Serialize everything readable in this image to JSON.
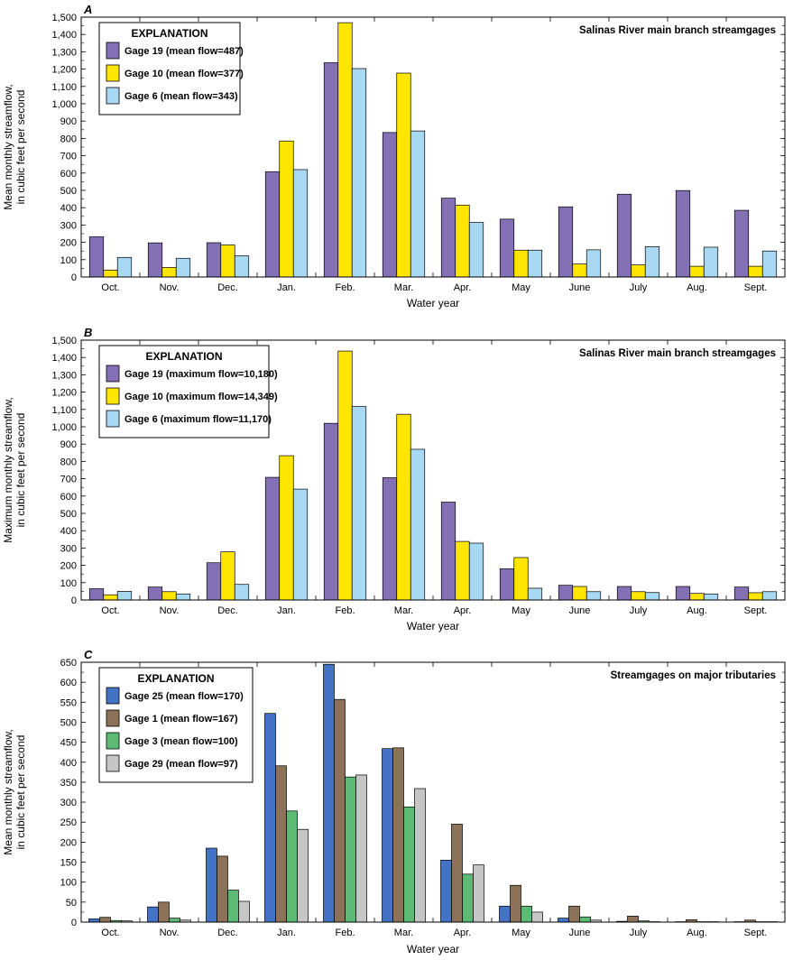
{
  "chart_data": [
    {
      "type": "bar",
      "panel_letter": "A",
      "title": "Salinas River main branch streamgages",
      "xlabel": "Water year",
      "ylabel": [
        "Mean monthly streamflow,",
        "in cubic feet per second"
      ],
      "ylim": [
        0,
        1500
      ],
      "ytick_step": 100,
      "yticks": [
        "0",
        "100",
        "200",
        "300",
        "400",
        "500",
        "600",
        "700",
        "800",
        "900",
        "1,000",
        "1,100",
        "1,200",
        "1,300",
        "1,400",
        "1,500"
      ],
      "categories": [
        "Oct.",
        "Nov.",
        "Dec.",
        "Jan.",
        "Feb.",
        "Mar.",
        "Apr.",
        "May",
        "June",
        "July",
        "Aug.",
        "Sept."
      ],
      "legend_title": "EXPLANATION",
      "legend_position": "top-left",
      "grid": false,
      "series": [
        {
          "name": "Gage 19 (mean flow=487)",
          "color": "#8470b4",
          "values": [
            232,
            197,
            198,
            608,
            1237,
            834,
            455,
            334,
            405,
            478,
            499,
            385
          ]
        },
        {
          "name": "Gage 10 (mean flow=377)",
          "color": "#ffe600",
          "values": [
            40,
            55,
            185,
            785,
            1468,
            1177,
            415,
            155,
            75,
            70,
            62,
            62
          ]
        },
        {
          "name": "Gage 6 (mean flow=343)",
          "color": "#a9d9f2",
          "values": [
            113,
            108,
            122,
            620,
            1203,
            843,
            315,
            155,
            157,
            175,
            172,
            150
          ]
        }
      ]
    },
    {
      "type": "bar",
      "panel_letter": "B",
      "title": "Salinas River main branch streamgages",
      "xlabel": "Water year",
      "ylabel": [
        "Maximum monthly streamflow,",
        "in cubic feet per second"
      ],
      "ylim": [
        0,
        1500
      ],
      "ytick_step": 100,
      "yticks": [
        "0",
        "100",
        "200",
        "300",
        "400",
        "500",
        "600",
        "700",
        "800",
        "900",
        "1,000",
        "1,100",
        "1,200",
        "1,300",
        "1,400",
        "1,500"
      ],
      "categories": [
        "Oct.",
        "Nov.",
        "Dec.",
        "Jan.",
        "Feb.",
        "Mar.",
        "Apr.",
        "May",
        "June",
        "July",
        "Aug.",
        "Sept."
      ],
      "legend_title": "EXPLANATION",
      "legend_position": "top-left",
      "grid": false,
      "series": [
        {
          "name": "Gage 19 (maximum flow=10,180)",
          "color": "#8470b4",
          "values": [
            65,
            75,
            215,
            708,
            1020,
            706,
            565,
            180,
            85,
            78,
            78,
            75
          ]
        },
        {
          "name": "Gage 10 (maximum flow=14,349)",
          "color": "#ffe600",
          "values": [
            30,
            48,
            278,
            833,
            1437,
            1072,
            338,
            245,
            78,
            48,
            38,
            42
          ]
        },
        {
          "name": "Gage 6 (maximum flow=11,170)",
          "color": "#a9d9f2",
          "values": [
            50,
            35,
            90,
            640,
            1117,
            870,
            328,
            68,
            48,
            43,
            35,
            48
          ]
        }
      ]
    },
    {
      "type": "bar",
      "panel_letter": "C",
      "title": "Streamgages on major tributaries",
      "xlabel": "Water year",
      "ylabel": [
        "Mean monthly streamflow,",
        "in cubic feet per second"
      ],
      "ylim": [
        0,
        650
      ],
      "ytick_step": 50,
      "yticks": [
        "0",
        "50",
        "100",
        "150",
        "200",
        "250",
        "300",
        "350",
        "400",
        "450",
        "500",
        "550",
        "600",
        "650"
      ],
      "categories": [
        "Oct.",
        "Nov.",
        "Dec.",
        "Jan.",
        "Feb.",
        "Mar.",
        "Apr.",
        "May",
        "June",
        "July",
        "Aug.",
        "Sept."
      ],
      "legend_title": "EXPLANATION",
      "legend_position": "top-left",
      "grid": false,
      "series": [
        {
          "name": "Gage 25 (mean flow=170)",
          "color": "#4472c4",
          "values": [
            8,
            38,
            185,
            522,
            645,
            434,
            155,
            40,
            10,
            2,
            1,
            1
          ]
        },
        {
          "name": "Gage 1 (mean flow=167)",
          "color": "#8b7258",
          "values": [
            12,
            50,
            165,
            391,
            557,
            436,
            245,
            92,
            40,
            15,
            6,
            5
          ]
        },
        {
          "name": "Gage 3 (mean flow=100)",
          "color": "#5cba74",
          "values": [
            4,
            10,
            80,
            278,
            363,
            288,
            120,
            40,
            13,
            3,
            1,
            1
          ]
        },
        {
          "name": "Gage 29 (mean flow=97)",
          "color": "#c6c6c6",
          "values": [
            3,
            5,
            52,
            232,
            368,
            334,
            143,
            25,
            5,
            1,
            1,
            1
          ]
        }
      ]
    }
  ]
}
